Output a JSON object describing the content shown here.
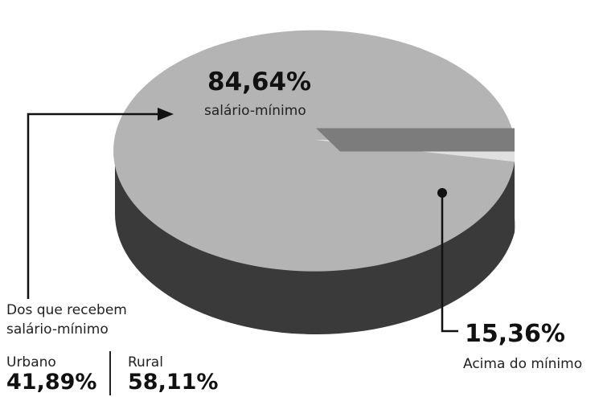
{
  "chart_data": {
    "type": "pie",
    "style": "3d",
    "slices": [
      {
        "value": 84.64,
        "value_label": "84,64%",
        "label": "salário-mínimo",
        "color": "#b4b4b4"
      },
      {
        "value": 15.36,
        "value_label": "15,36%",
        "label": "Acima do mínimo",
        "color": "#e0e0e0"
      }
    ],
    "breakdown": {
      "title_line1": "Dos que recebem",
      "title_line2": "salário-mínimo",
      "items": [
        {
          "label": "Urbano",
          "value": 41.89,
          "value_label": "41,89%"
        },
        {
          "label": "Rural",
          "value": 58.11,
          "value_label": "58,11%"
        }
      ]
    },
    "colors": {
      "side_dark": "#3a3a3a",
      "side_mid": "#6a6a6a",
      "inner_cut": "#7c7c7c",
      "line": "#111111"
    }
  }
}
